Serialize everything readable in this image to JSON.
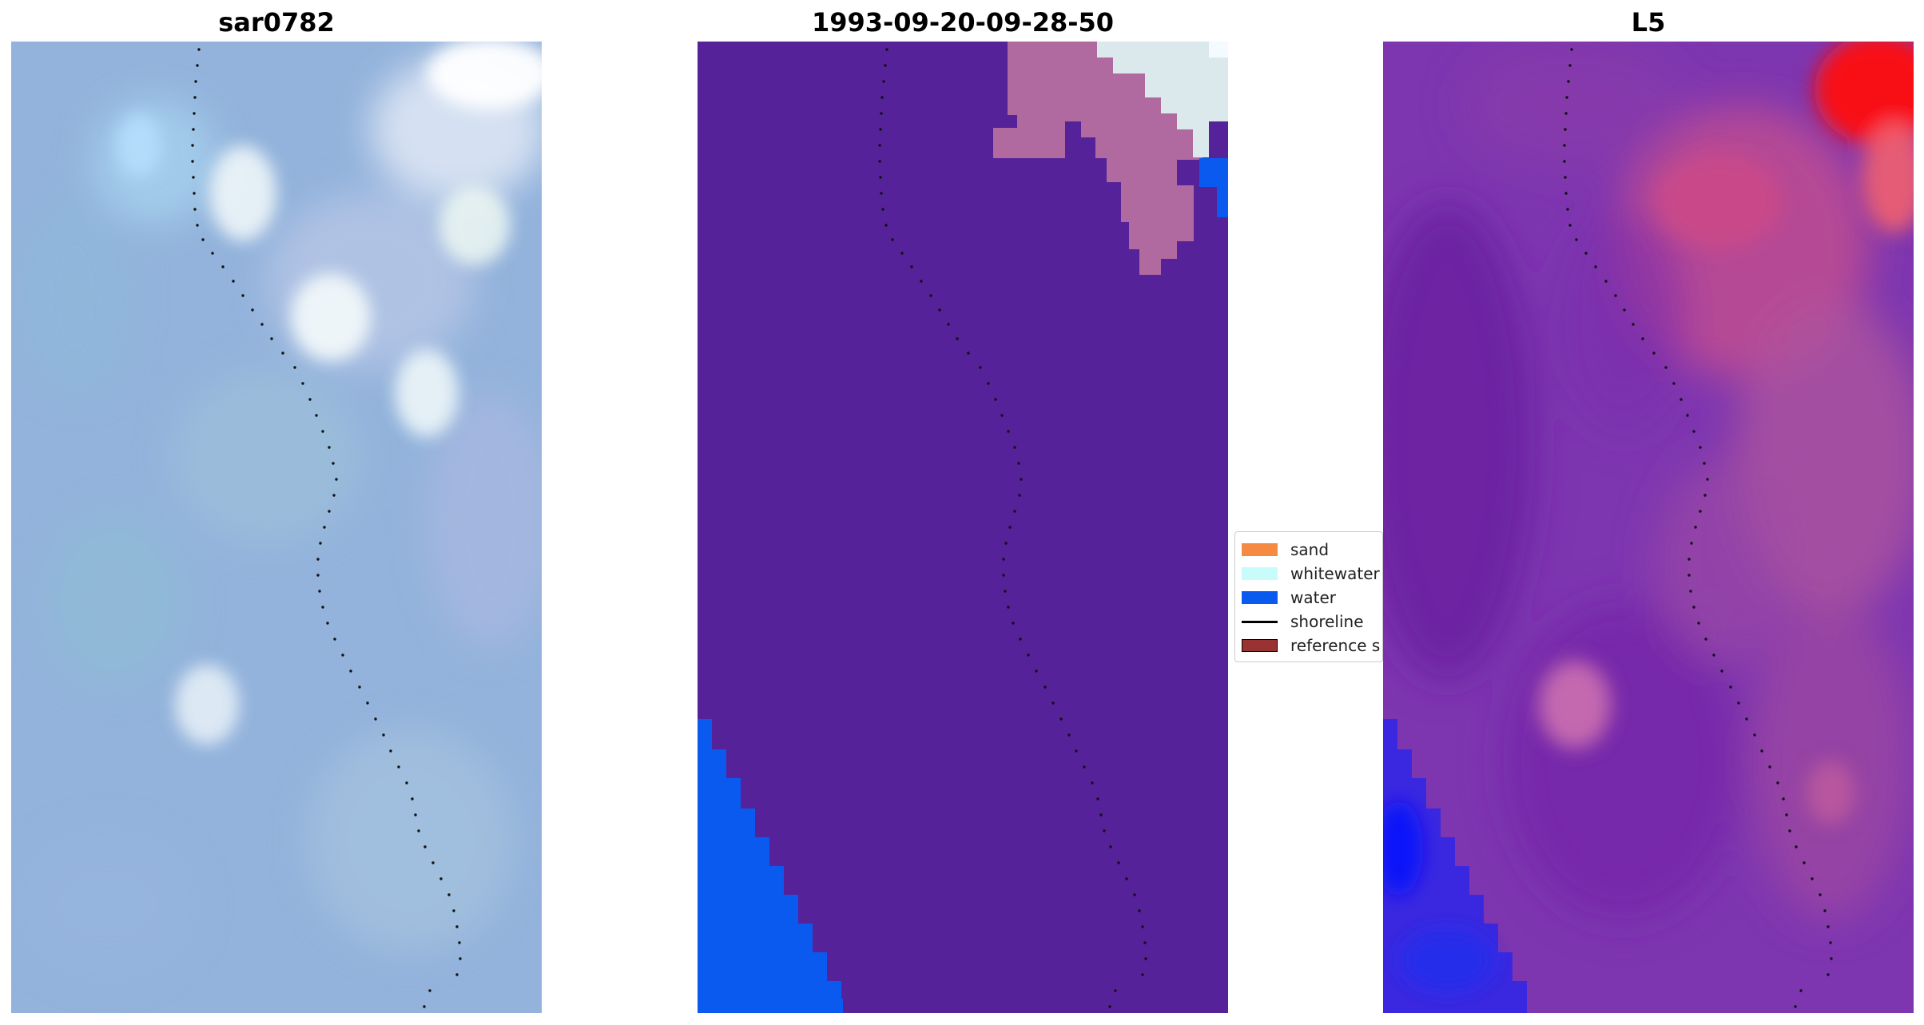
{
  "panels": [
    {
      "title": "sar0782"
    },
    {
      "title": "1993-09-20-09-28-50"
    },
    {
      "title": "L5"
    }
  ],
  "legend": {
    "items": [
      {
        "label": "sand",
        "color": "#f58a42",
        "kind": "patch"
      },
      {
        "label": "whitewater",
        "color": "#c8fcfa",
        "kind": "patch"
      },
      {
        "label": "water",
        "color": "#0a5af0",
        "kind": "patch"
      },
      {
        "label": "shoreline",
        "color": "#000000",
        "kind": "line"
      },
      {
        "label": "reference s",
        "color": "#993333",
        "kind": "patch"
      }
    ]
  },
  "colors": {
    "rgb_base": "#93b3dc",
    "rgb_bright": "#e6f4f8",
    "class_land": "#552299",
    "class_whitewater_overlay": "#b06aa0",
    "class_water": "#0a5af0",
    "mndwi_low": "#0010ff",
    "mndwi_mid": "#6a1ea0",
    "mndwi_high": "#ff1010"
  }
}
